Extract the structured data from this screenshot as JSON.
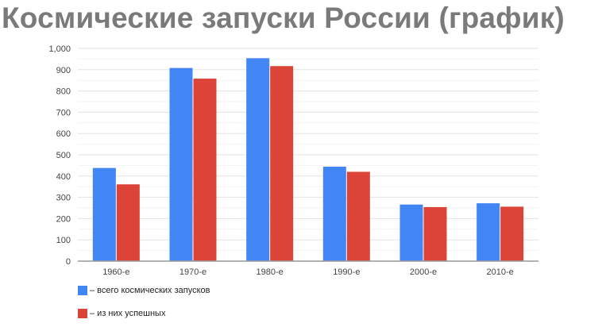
{
  "chart_data": {
    "type": "bar",
    "title": "Космические запуски России (график)",
    "categories": [
      "1960-е",
      "1970-е",
      "1980-е",
      "1990-е",
      "2000-е",
      "2010-е"
    ],
    "series": [
      {
        "name": "– всего космических запусков",
        "color": "#4285f4",
        "values": [
          438,
          908,
          954,
          444,
          266,
          272
        ]
      },
      {
        "name": "– из них успешных",
        "color": "#db4437",
        "values": [
          361,
          858,
          917,
          420,
          254,
          256
        ]
      }
    ],
    "ylim": [
      0,
      1000
    ],
    "yticks": [
      "0",
      "100",
      "200",
      "300",
      "400",
      "500",
      "600",
      "700",
      "800",
      "900",
      "1,000"
    ],
    "grid": true,
    "legend": "bottom-left",
    "xlabel": "",
    "ylabel": ""
  }
}
